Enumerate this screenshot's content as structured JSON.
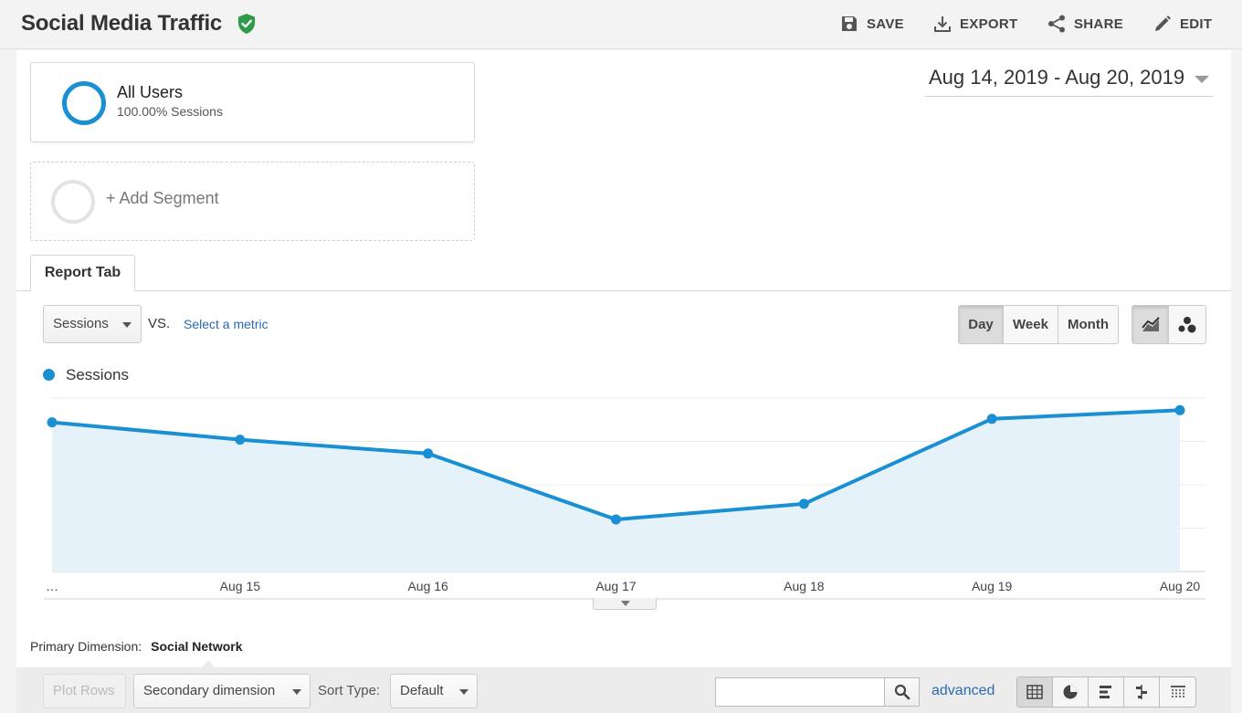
{
  "header": {
    "title": "Social Media Traffic",
    "actions": [
      {
        "label": "SAVE",
        "icon": "save-icon"
      },
      {
        "label": "EXPORT",
        "icon": "download-icon"
      },
      {
        "label": "SHARE",
        "icon": "share-icon"
      },
      {
        "label": "EDIT",
        "icon": "pencil-icon"
      }
    ]
  },
  "segments": {
    "active": {
      "name": "All Users",
      "sub": "100.00% Sessions",
      "color": "#1a8fd1"
    },
    "add_label": "+ Add Segment"
  },
  "date_range": "Aug 14, 2019 - Aug 20, 2019",
  "tabs": {
    "report_tab": "Report Tab"
  },
  "metric_controls": {
    "metric": "Sessions",
    "vs": "VS.",
    "select_metric": "Select a metric",
    "granularity": [
      "Day",
      "Week",
      "Month"
    ],
    "granularity_active": "Day"
  },
  "chart_data": {
    "type": "area",
    "series": [
      {
        "name": "Sessions",
        "color": "#1a8fd1",
        "values": [
          86,
          76,
          68,
          30,
          39,
          88,
          93
        ]
      }
    ],
    "x": [
      "…",
      "Aug 15",
      "Aug 16",
      "Aug 17",
      "Aug 18",
      "Aug 19",
      "Aug 20"
    ],
    "ylim": [
      0,
      100
    ],
    "grid": true,
    "legend": "top-left"
  },
  "dimension": {
    "label": "Primary Dimension:",
    "value": "Social Network"
  },
  "table_toolbar": {
    "plot_rows": "Plot Rows",
    "secondary_dimension": "Secondary dimension",
    "sort_type_label": "Sort Type:",
    "sort_type_value": "Default",
    "search_placeholder": "",
    "advanced": "advanced"
  }
}
